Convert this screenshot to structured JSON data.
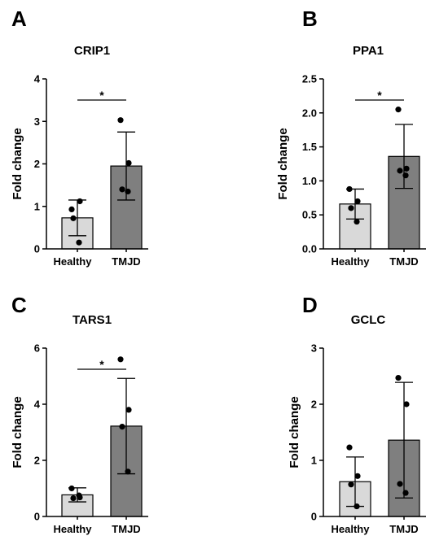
{
  "chart_data": [
    {
      "panel": "A",
      "type": "bar",
      "title": "CRIP1",
      "ylabel": "Fold change",
      "categories": [
        "Healthy",
        "TMJD"
      ],
      "colors": [
        "#d9d9d9",
        "#7f7f7f"
      ],
      "ylim": [
        0,
        4
      ],
      "yticks": [
        "0",
        "1",
        "2",
        "3",
        "4"
      ],
      "ytick_values": [
        0,
        1,
        2,
        3,
        4
      ],
      "means": [
        0.73,
        1.95
      ],
      "errors": [
        0.42,
        0.8
      ],
      "points": [
        [
          0.93,
          1.12,
          0.72,
          0.15
        ],
        [
          3.03,
          2.02,
          1.4,
          1.35
        ]
      ],
      "significance": "*"
    },
    {
      "panel": "B",
      "type": "bar",
      "title": "PPA1",
      "ylabel": "Fold change",
      "categories": [
        "Healthy",
        "TMJD"
      ],
      "colors": [
        "#d9d9d9",
        "#7f7f7f"
      ],
      "ylim": [
        0,
        2.5
      ],
      "yticks": [
        "0.0",
        "0.5",
        "1.0",
        "1.5",
        "2.0",
        "2.5"
      ],
      "ytick_values": [
        0,
        0.5,
        1,
        1.5,
        2,
        2.5
      ],
      "means": [
        0.66,
        1.36
      ],
      "errors": [
        0.22,
        0.47
      ],
      "points": [
        [
          0.88,
          0.7,
          0.6,
          0.4
        ],
        [
          2.05,
          1.18,
          1.15,
          1.08
        ]
      ],
      "significance": "*"
    },
    {
      "panel": "C",
      "type": "bar",
      "title": "TARS1",
      "ylabel": "Fold change",
      "categories": [
        "Healthy",
        "TMJD"
      ],
      "colors": [
        "#d9d9d9",
        "#7f7f7f"
      ],
      "ylim": [
        0,
        6
      ],
      "yticks": [
        "0",
        "2",
        "4",
        "6"
      ],
      "ytick_values": [
        0,
        2,
        4,
        6
      ],
      "means": [
        0.77,
        3.22
      ],
      "errors": [
        0.25,
        1.7
      ],
      "points": [
        [
          1.0,
          0.68,
          0.65,
          0.75
        ],
        [
          5.6,
          3.8,
          3.2,
          1.6
        ]
      ],
      "significance": "*"
    },
    {
      "panel": "D",
      "type": "bar",
      "title": "GCLC",
      "ylabel": "Fold change",
      "categories": [
        "Healthy",
        "TMJD"
      ],
      "colors": [
        "#d9d9d9",
        "#7f7f7f"
      ],
      "ylim": [
        0,
        3
      ],
      "yticks": [
        "0",
        "1",
        "2",
        "3"
      ],
      "ytick_values": [
        0,
        1,
        2,
        3
      ],
      "means": [
        0.62,
        1.36
      ],
      "errors": [
        0.44,
        1.03
      ],
      "points": [
        [
          1.23,
          0.72,
          0.57,
          0.18
        ],
        [
          2.47,
          2.0,
          0.58,
          0.42
        ]
      ],
      "significance": ""
    }
  ]
}
